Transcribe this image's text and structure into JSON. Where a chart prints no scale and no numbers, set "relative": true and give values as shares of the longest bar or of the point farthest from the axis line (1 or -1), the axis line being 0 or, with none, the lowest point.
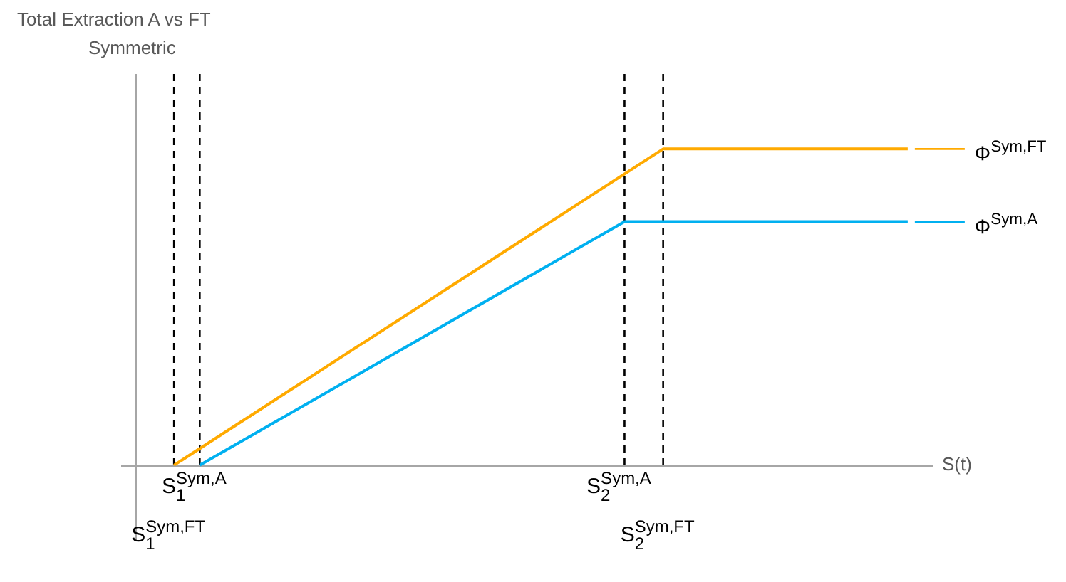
{
  "chart_data": {
    "type": "line",
    "title": "Total Extraction A vs FT",
    "subtitle": "Symmetric",
    "xlabel": "S(t)",
    "relative": true,
    "legend": "right",
    "marker": "none",
    "line_style": "solid",
    "categories": [
      null,
      null,
      null,
      null,
      null,
      null,
      null,
      null,
      null,
      null,
      null,
      null,
      null,
      null,
      null,
      null,
      null,
      null,
      null,
      null,
      null,
      null,
      null,
      null,
      null,
      null,
      null,
      null,
      null,
      null,
      null,
      null,
      null,
      null,
      null,
      null,
      null,
      null,
      null,
      null,
      null,
      null,
      null,
      null,
      null,
      null,
      null,
      null,
      null,
      null,
      null,
      null,
      null,
      null,
      null,
      null,
      null,
      null,
      null,
      null,
      null,
      null,
      null
    ],
    "series": [
      {
        "name": "Φ$^{Sym,FT}$",
        "color": "#ffaa00",
        "values": [
          null,
          null,
          null,
          0,
          null,
          null,
          null,
          null,
          null,
          null,
          null,
          null,
          null,
          null,
          null,
          null,
          null,
          null,
          null,
          null,
          null,
          null,
          null,
          null,
          null,
          null,
          null,
          null,
          null,
          null,
          null,
          null,
          null,
          null,
          null,
          null,
          null,
          null,
          null,
          null,
          null,
          1,
          null,
          null,
          null,
          null,
          null,
          null,
          null,
          null,
          null,
          null,
          null,
          null,
          null,
          null,
          null,
          null,
          null,
          null,
          1,
          null,
          null
        ]
      },
      {
        "name": "Φ$^{Sym,A}$",
        "color": "#00b0f0",
        "values": [
          null,
          null,
          null,
          null,
          null,
          0,
          null,
          null,
          null,
          null,
          null,
          null,
          null,
          null,
          null,
          null,
          null,
          null,
          null,
          null,
          null,
          null,
          null,
          null,
          null,
          null,
          null,
          null,
          null,
          null,
          null,
          null,
          null,
          null,
          null,
          null,
          null,
          null,
          0.77,
          null,
          null,
          null,
          null,
          null,
          null,
          null,
          null,
          null,
          null,
          null,
          null,
          null,
          null,
          null,
          null,
          null,
          null,
          null,
          null,
          null,
          0.77,
          null,
          null
        ]
      }
    ],
    "grid": "x",
    "annotations": [
      "S$_{1}$$^{Sym,A}$",
      "S$_{1}$$^{Sym,FT}$",
      "S$_{2}$$^{Sym,A}$",
      "S$_{2}$$^{Sym,FT}$"
    ]
  }
}
